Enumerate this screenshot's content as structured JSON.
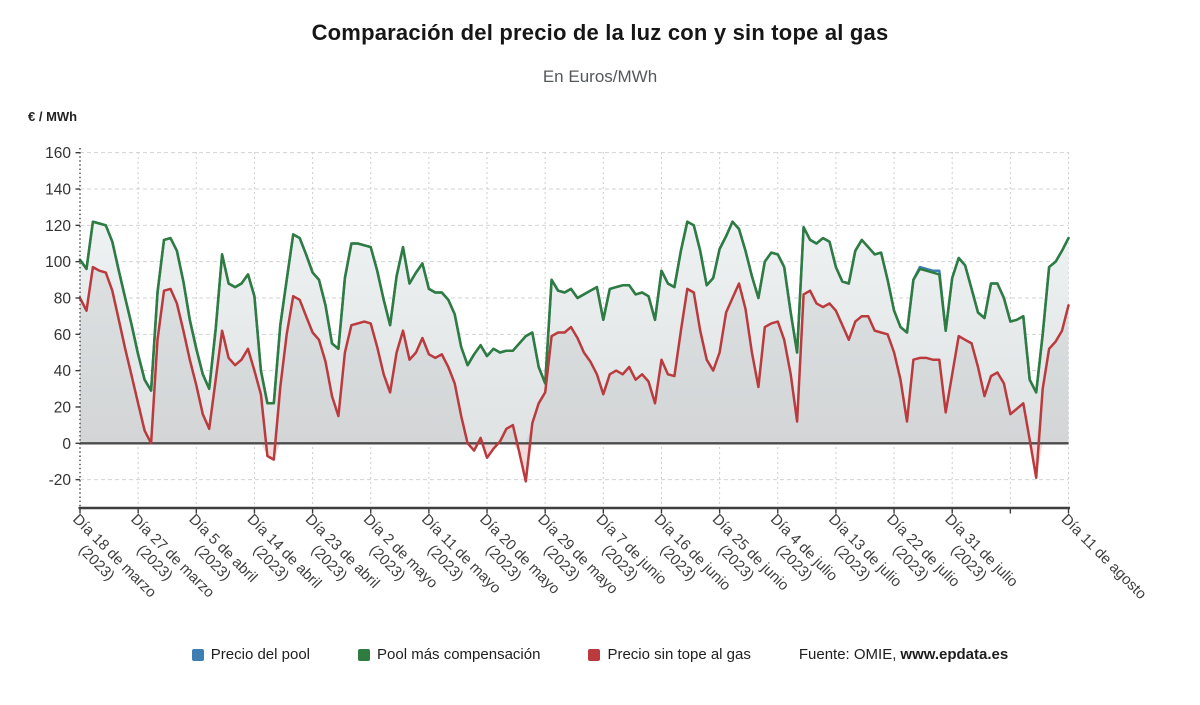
{
  "chart_data": {
    "type": "line",
    "title": "Comparación del precio de la luz con y sin tope al gas",
    "subtitle": "En Euros/MWh",
    "ylabel": "€ / MWh",
    "ylim": [
      -20,
      160
    ],
    "grid": true,
    "legend_position": "bottom",
    "y_ticks": [
      160,
      140,
      120,
      100,
      80,
      60,
      40,
      20,
      0,
      -20
    ],
    "x_count": 154,
    "unlabeled_tick_index": 144,
    "x_tick_labels": [
      {
        "index": 0,
        "line1": "Día 18 de marzo",
        "line2": "(2023)"
      },
      {
        "index": 9,
        "line1": "Día 27 de marzo",
        "line2": "(2023)"
      },
      {
        "index": 18,
        "line1": "Día 5 de abril",
        "line2": "(2023)"
      },
      {
        "index": 27,
        "line1": "Día 14 de abril",
        "line2": "(2023)"
      },
      {
        "index": 36,
        "line1": "Día 23 de abril",
        "line2": "(2023)"
      },
      {
        "index": 45,
        "line1": "Día 2 de mayo",
        "line2": "(2023)"
      },
      {
        "index": 54,
        "line1": "Día 11 de mayo",
        "line2": "(2023)"
      },
      {
        "index": 63,
        "line1": "Día 20 de mayo",
        "line2": "(2023)"
      },
      {
        "index": 72,
        "line1": "Día 29 de mayo",
        "line2": "(2023)"
      },
      {
        "index": 81,
        "line1": "Día 7 de junio",
        "line2": "(2023)"
      },
      {
        "index": 90,
        "line1": "Día 16 de junio",
        "line2": "(2023)"
      },
      {
        "index": 99,
        "line1": "Día 25 de junio",
        "line2": "(2023)"
      },
      {
        "index": 108,
        "line1": "Día 4 de julio",
        "line2": "(2023)"
      },
      {
        "index": 117,
        "line1": "Día 13 de julio",
        "line2": "(2023)"
      },
      {
        "index": 126,
        "line1": "Día 22 de julio",
        "line2": "(2023)"
      },
      {
        "index": 135,
        "line1": "Día 31 de julio",
        "line2": "(2023)"
      },
      {
        "index": 153,
        "line1": "Día 11 de agosto",
        "line2": ""
      }
    ],
    "series": [
      {
        "name": "Precio del pool",
        "color": "#3d7eb3",
        "values": [
          101,
          96,
          122,
          121,
          120,
          111,
          95,
          80,
          65,
          49,
          35,
          29,
          83,
          112,
          113,
          106,
          89,
          68,
          52,
          38,
          30,
          63,
          104,
          88,
          86,
          88,
          93,
          81,
          40,
          22,
          22,
          65,
          90,
          115,
          113,
          104,
          94,
          90,
          76,
          55,
          52,
          91,
          110,
          110,
          109,
          108,
          95,
          79,
          65,
          92,
          108,
          88,
          94,
          99,
          85,
          83,
          83,
          79,
          71,
          53,
          43,
          49,
          54,
          48,
          52,
          50,
          51,
          51,
          55,
          59,
          61,
          42,
          33,
          90,
          84,
          83,
          85,
          80,
          82,
          84,
          86,
          68,
          85,
          86,
          87,
          87,
          82,
          83,
          81,
          68,
          95,
          88,
          86,
          106,
          122,
          120,
          106,
          87,
          91,
          107,
          114,
          122,
          118,
          106,
          92,
          80,
          100,
          105,
          104,
          97,
          72,
          50,
          119,
          112,
          110,
          113,
          111,
          97,
          89,
          88,
          106,
          112,
          108,
          104,
          105,
          90,
          73,
          64,
          61,
          90,
          97,
          96,
          95,
          95,
          62,
          91,
          102,
          98,
          85,
          72,
          69,
          88,
          88,
          80,
          67,
          68,
          70,
          35,
          28,
          60,
          97,
          100,
          106,
          113
        ]
      },
      {
        "name": "Pool más compensación",
        "color": "#2e7c3f",
        "values": [
          101,
          96,
          122,
          121,
          120,
          111,
          95,
          80,
          65,
          49,
          35,
          29,
          83,
          112,
          113,
          106,
          89,
          68,
          52,
          38,
          30,
          63,
          104,
          88,
          86,
          88,
          93,
          81,
          40,
          22,
          22,
          65,
          90,
          115,
          113,
          104,
          94,
          90,
          76,
          55,
          52,
          91,
          110,
          110,
          109,
          108,
          95,
          79,
          65,
          92,
          108,
          88,
          94,
          99,
          85,
          83,
          83,
          79,
          71,
          53,
          43,
          49,
          54,
          48,
          52,
          50,
          51,
          51,
          55,
          59,
          61,
          42,
          33,
          90,
          84,
          83,
          85,
          80,
          82,
          84,
          86,
          68,
          85,
          86,
          87,
          87,
          82,
          83,
          81,
          68,
          95,
          88,
          86,
          106,
          122,
          120,
          106,
          87,
          91,
          107,
          114,
          122,
          118,
          106,
          92,
          80,
          100,
          105,
          104,
          97,
          72,
          50,
          119,
          112,
          110,
          113,
          111,
          97,
          89,
          88,
          106,
          112,
          108,
          104,
          105,
          90,
          73,
          64,
          61,
          90,
          96,
          95,
          94,
          93,
          62,
          91,
          102,
          98,
          85,
          72,
          69,
          88,
          88,
          80,
          67,
          68,
          70,
          35,
          28,
          60,
          97,
          100,
          106,
          113
        ]
      },
      {
        "name": "Precio sin tope al gas",
        "color": "#bb3a3e",
        "values": [
          80,
          73,
          97,
          95,
          94,
          84,
          68,
          52,
          37,
          22,
          7,
          0,
          57,
          84,
          85,
          77,
          62,
          46,
          32,
          16,
          8,
          35,
          62,
          47,
          43,
          46,
          52,
          40,
          27,
          -7,
          -9,
          31,
          60,
          81,
          79,
          70,
          61,
          57,
          45,
          26,
          15,
          50,
          65,
          66,
          67,
          66,
          53,
          38,
          28,
          50,
          62,
          46,
          50,
          58,
          49,
          47,
          49,
          42,
          33,
          15,
          0,
          -4,
          3,
          -8,
          -3,
          1,
          8,
          10,
          -5,
          -21,
          11,
          22,
          28,
          59,
          61,
          61,
          64,
          58,
          50,
          45,
          38,
          27,
          38,
          40,
          38,
          42,
          35,
          38,
          34,
          22,
          46,
          38,
          37,
          62,
          85,
          83,
          62,
          46,
          40,
          50,
          72,
          80,
          88,
          74,
          50,
          31,
          64,
          66,
          67,
          57,
          38,
          12,
          82,
          84,
          77,
          75,
          77,
          73,
          65,
          57,
          67,
          70,
          70,
          62,
          61,
          60,
          50,
          35,
          12,
          46,
          47,
          47,
          46,
          46,
          17,
          38,
          59,
          57,
          55,
          42,
          26,
          37,
          39,
          33,
          16,
          19,
          22,
          2,
          -19,
          30,
          52,
          56,
          62,
          76
        ]
      }
    ]
  },
  "legend": {
    "source_prefix": "Fuente: OMIE,",
    "source_site": "www.epdata.es"
  }
}
